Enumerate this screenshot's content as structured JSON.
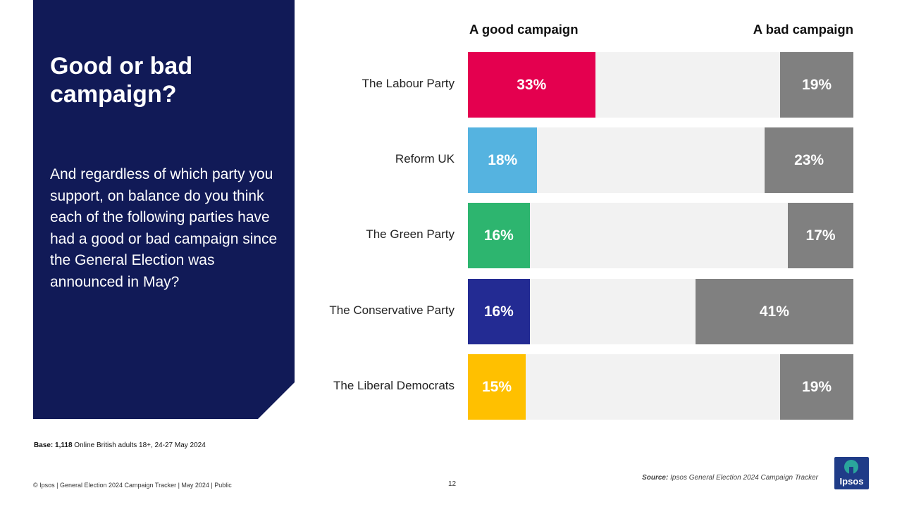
{
  "panel": {
    "title": "Good or bad campaign?",
    "question": "And regardless of which party you support, on balance do you think each of the following parties have had a good or bad campaign since the General Election was announced in May?"
  },
  "chart_data": {
    "type": "bar",
    "orientation": "horizontal-stacked",
    "title": "Good or bad campaign?",
    "series_headers": {
      "good": "A good campaign",
      "bad": "A bad campaign"
    },
    "categories": [
      "The Labour Party",
      "Reform UK",
      "The Green Party",
      "The Conservative Party",
      "The Liberal Democrats"
    ],
    "series": [
      {
        "name": "A good campaign",
        "values": [
          33,
          18,
          16,
          16,
          15
        ],
        "colors": [
          "#e4004f",
          "#55b3e0",
          "#2db56f",
          "#232b93",
          "#ffc000"
        ]
      },
      {
        "name": "A bad campaign",
        "values": [
          19,
          23,
          17,
          41,
          19
        ],
        "color": "#808080"
      }
    ],
    "labels_good": [
      "33%",
      "18%",
      "16%",
      "16%",
      "15%"
    ],
    "labels_bad": [
      "19%",
      "23%",
      "17%",
      "41%",
      "19%"
    ],
    "xlim": [
      0,
      100
    ],
    "track_color": "#f2f2f2"
  },
  "base": {
    "label": "Base:",
    "count": "1,118",
    "text": "Online British adults 18+, 24-27 May 2024"
  },
  "footer": {
    "text": "© Ipsos | General Election 2024 Campaign Tracker | May 2024 | Public",
    "page": "12"
  },
  "source": {
    "label": "Source:",
    "text": "Ipsos General Election 2024 Campaign Tracker"
  },
  "logo": {
    "text": "Ipsos"
  }
}
